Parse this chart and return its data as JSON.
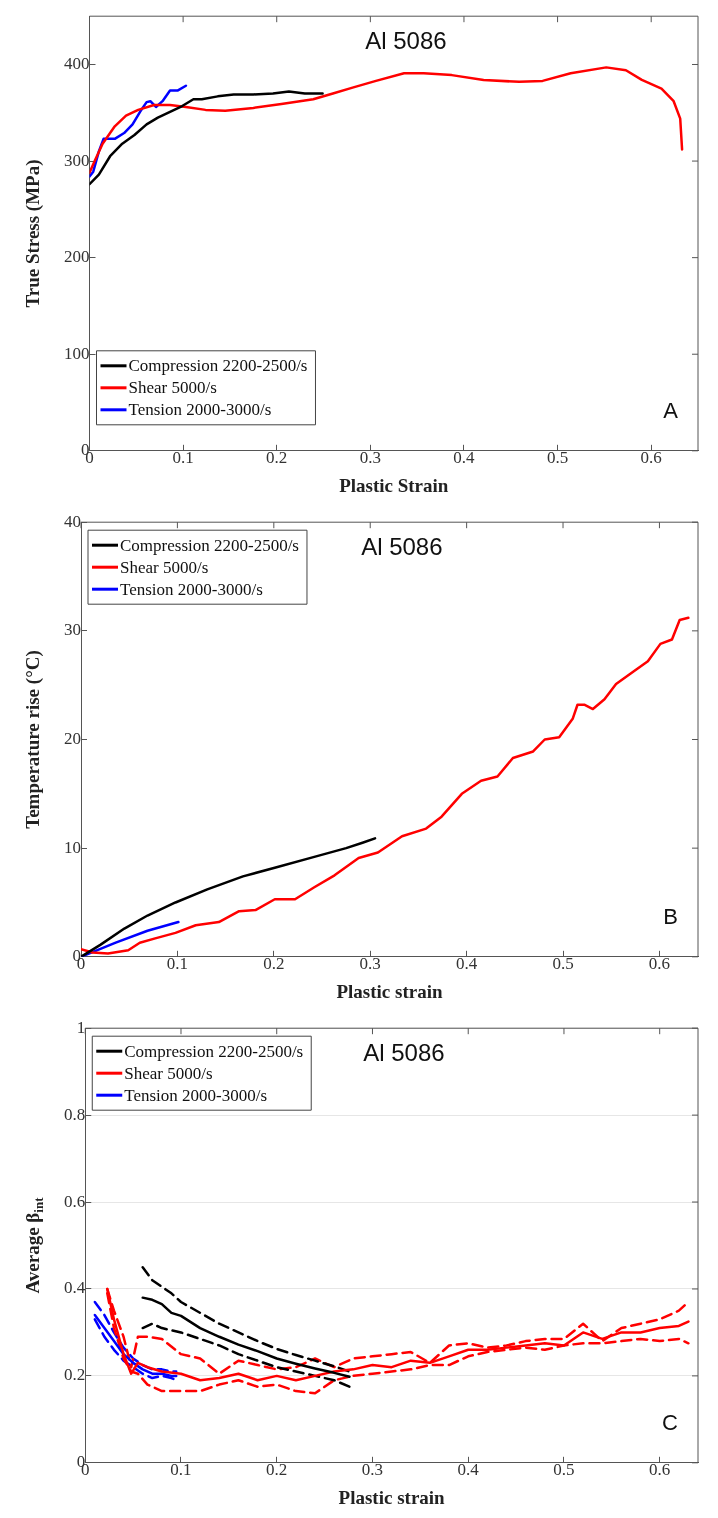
{
  "chart_data": [
    {
      "type": "line",
      "title": "Al 5086",
      "xlabel": "Plastic Strain",
      "ylabel": "True Stress (MPa)",
      "annotations": [
        "A"
      ],
      "xlim": [
        0,
        0.65
      ],
      "xticks": [
        0,
        0.1,
        0.2,
        0.3,
        0.4,
        0.5,
        0.6
      ],
      "ylim": [
        0,
        450
      ],
      "yticks": [
        0,
        100,
        200,
        300,
        400
      ],
      "legend": "bottom left",
      "grid": false,
      "marker": "none",
      "line_style": "solid",
      "series": [
        {
          "name": "Compression 2200-2500/s",
          "color": "#000000",
          "x": [
            0,
            0.01,
            0.022,
            0.035,
            0.048,
            0.061,
            0.073,
            0.086,
            0.099,
            0.111,
            0.12,
            0.137,
            0.154,
            0.175,
            0.196,
            0.213,
            0.23,
            0.249
          ],
          "values": [
            276,
            286,
            305,
            318,
            327,
            338,
            345,
            351,
            357,
            364,
            364,
            367,
            369,
            369,
            370,
            372,
            370,
            370
          ]
        },
        {
          "name": "Shear 5000/s",
          "color": "#ff0000",
          "x": [
            0,
            0.006,
            0.014,
            0.027,
            0.039,
            0.052,
            0.069,
            0.086,
            0.103,
            0.124,
            0.145,
            0.175,
            0.205,
            0.239,
            0.26,
            0.281,
            0.306,
            0.336,
            0.357,
            0.387,
            0.421,
            0.459,
            0.484,
            0.514,
            0.552,
            0.573,
            0.59,
            0.611,
            0.624,
            0.631,
            0.633
          ],
          "values": [
            288,
            301,
            318,
            336,
            347,
            353,
            358,
            358,
            356,
            353,
            352,
            355,
            359,
            364,
            370,
            376,
            383,
            391,
            391,
            389,
            384,
            382,
            383,
            391,
            397,
            394,
            384,
            375,
            362,
            344,
            312
          ]
        },
        {
          "name": "Tension 2000-3000/s",
          "color": "#0000ff",
          "x": [
            0,
            0.004,
            0.01,
            0.015,
            0.027,
            0.037,
            0.046,
            0.054,
            0.061,
            0.065,
            0.071,
            0.078,
            0.086,
            0.094,
            0.103
          ],
          "values": [
            284,
            289,
            310,
            323,
            323,
            329,
            338,
            351,
            361,
            362,
            356,
            362,
            373,
            373,
            378
          ]
        }
      ]
    },
    {
      "type": "line",
      "title": "Al 5086",
      "xlabel": "Plastic strain",
      "ylabel": "Temperature rise (°C)",
      "annotations": [
        "B"
      ],
      "xlim": [
        0,
        0.64
      ],
      "xticks": [
        0,
        0.1,
        0.2,
        0.3,
        0.4,
        0.5,
        0.6
      ],
      "ylim": [
        0,
        40
      ],
      "yticks": [
        0,
        10,
        20,
        30,
        40
      ],
      "legend": "top left",
      "grid": false,
      "marker": "none",
      "line_style": "solid",
      "series": [
        {
          "name": "Compression 2200-2500/s",
          "color": "#000000",
          "x": [
            0,
            0.02,
            0.045,
            0.069,
            0.098,
            0.131,
            0.168,
            0.201,
            0.242,
            0.275,
            0.292,
            0.305
          ],
          "values": [
            0,
            1.1,
            2.6,
            3.8,
            5.0,
            6.2,
            7.4,
            8.2,
            9.2,
            10.0,
            10.5,
            10.9
          ]
        },
        {
          "name": "Shear 5000/s",
          "color": "#ff0000",
          "x": [
            0,
            0.012,
            0.028,
            0.049,
            0.061,
            0.077,
            0.098,
            0.119,
            0.143,
            0.164,
            0.181,
            0.201,
            0.222,
            0.242,
            0.263,
            0.288,
            0.308,
            0.333,
            0.358,
            0.374,
            0.395,
            0.415,
            0.432,
            0.448,
            0.469,
            0.481,
            0.496,
            0.51,
            0.515,
            0.522,
            0.531,
            0.543,
            0.555,
            0.572,
            0.588,
            0.601,
            0.613,
            0.621,
            0.63
          ],
          "values": [
            0.7,
            0.4,
            0.3,
            0.6,
            1.3,
            1.7,
            2.2,
            2.9,
            3.2,
            4.2,
            4.3,
            5.3,
            5.3,
            6.4,
            7.5,
            9.1,
            9.6,
            11.1,
            11.8,
            12.9,
            15.0,
            16.2,
            16.6,
            18.3,
            18.9,
            20.0,
            20.2,
            21.9,
            23.2,
            23.2,
            22.8,
            23.7,
            25.1,
            26.2,
            27.2,
            28.8,
            29.2,
            31.0,
            31.2
          ]
        },
        {
          "name": "Tension 2000-3000/s",
          "color": "#0000ff",
          "x": [
            0,
            0.036,
            0.069,
            0.101
          ],
          "values": [
            0,
            1.3,
            2.4,
            3.2
          ]
        }
      ]
    },
    {
      "type": "line",
      "title": "Al 5086",
      "xlabel": "Plastic strain",
      "ylabel": "Average β$_{int}$",
      "annotations": [
        "C"
      ],
      "xlim": [
        0,
        0.64
      ],
      "xticks": [
        0,
        0.1,
        0.2,
        0.3,
        0.4,
        0.5,
        0.6
      ],
      "ylim": [
        0,
        1
      ],
      "yticks": [
        0,
        0.2,
        0.4,
        0.6,
        0.8,
        1
      ],
      "legend": "top left",
      "grid": "y",
      "marker": "none",
      "line_style": "solid",
      "series": [
        {
          "name": "Compression 2200-2500/s",
          "color": "#000000",
          "x": [
            0.06,
            0.07,
            0.08,
            0.09,
            0.1,
            0.12,
            0.14,
            0.16,
            0.18,
            0.2,
            0.22,
            0.24,
            0.26,
            0.276
          ],
          "values": [
            0.38,
            0.375,
            0.365,
            0.345,
            0.338,
            0.31,
            0.29,
            0.272,
            0.257,
            0.24,
            0.228,
            0.217,
            0.207,
            0.198
          ]
        },
        {
          "name": "Shear 5000/s",
          "color": "#ff0000",
          "x": [
            0.023,
            0.03,
            0.04,
            0.048,
            0.055,
            0.065,
            0.08,
            0.1,
            0.12,
            0.14,
            0.16,
            0.18,
            0.2,
            0.22,
            0.24,
            0.26,
            0.28,
            0.3,
            0.32,
            0.34,
            0.36,
            0.38,
            0.4,
            0.42,
            0.44,
            0.46,
            0.48,
            0.5,
            0.52,
            0.54,
            0.56,
            0.58,
            0.6,
            0.62,
            0.63
          ],
          "values": [
            0.4,
            0.33,
            0.25,
            0.205,
            0.23,
            0.22,
            0.21,
            0.205,
            0.19,
            0.195,
            0.205,
            0.19,
            0.2,
            0.19,
            0.2,
            0.21,
            0.215,
            0.225,
            0.22,
            0.235,
            0.23,
            0.245,
            0.26,
            0.26,
            0.265,
            0.27,
            0.275,
            0.27,
            0.3,
            0.285,
            0.3,
            0.3,
            0.31,
            0.315,
            0.325
          ]
        },
        {
          "name": "Tension 2000-3000/s",
          "color": "#0000ff",
          "x": [
            0.01,
            0.02,
            0.03,
            0.04,
            0.05,
            0.06,
            0.07,
            0.08,
            0.09,
            0.095
          ],
          "values": [
            0.34,
            0.31,
            0.28,
            0.25,
            0.23,
            0.215,
            0.205,
            0.205,
            0.2,
            0.2
          ]
        },
        {
          "color": "#000000",
          "line_style": "dashed",
          "x": [
            0.06,
            0.07,
            0.08,
            0.09,
            0.1,
            0.12,
            0.14,
            0.16,
            0.18,
            0.2,
            0.22,
            0.24,
            0.26,
            0.276
          ],
          "values": [
            0.45,
            0.42,
            0.405,
            0.39,
            0.37,
            0.345,
            0.32,
            0.3,
            0.28,
            0.262,
            0.248,
            0.235,
            0.222,
            0.21
          ]
        },
        {
          "color": "#000000",
          "line_style": "dashed",
          "x": [
            0.06,
            0.07,
            0.08,
            0.09,
            0.1,
            0.12,
            0.14,
            0.16,
            0.18,
            0.2,
            0.22,
            0.24,
            0.26,
            0.276
          ],
          "values": [
            0.31,
            0.32,
            0.31,
            0.305,
            0.3,
            0.285,
            0.27,
            0.25,
            0.235,
            0.22,
            0.21,
            0.2,
            0.19,
            0.175
          ]
        },
        {
          "color": "#ff0000",
          "line_style": "dashed",
          "x": [
            0.023,
            0.03,
            0.04,
            0.048,
            0.055,
            0.065,
            0.08,
            0.1,
            0.12,
            0.14,
            0.16,
            0.18,
            0.2,
            0.22,
            0.24,
            0.26,
            0.28,
            0.3,
            0.32,
            0.34,
            0.36,
            0.38,
            0.4,
            0.42,
            0.44,
            0.46,
            0.48,
            0.5,
            0.52,
            0.54,
            0.56,
            0.58,
            0.6,
            0.62,
            0.63
          ],
          "values": [
            0.4,
            0.35,
            0.29,
            0.22,
            0.29,
            0.29,
            0.285,
            0.25,
            0.24,
            0.205,
            0.235,
            0.225,
            0.215,
            0.22,
            0.24,
            0.22,
            0.24,
            0.245,
            0.25,
            0.255,
            0.23,
            0.27,
            0.275,
            0.265,
            0.27,
            0.28,
            0.285,
            0.285,
            0.32,
            0.28,
            0.31,
            0.32,
            0.33,
            0.35,
            0.37
          ]
        },
        {
          "color": "#ff0000",
          "line_style": "dashed",
          "x": [
            0.023,
            0.03,
            0.04,
            0.048,
            0.055,
            0.065,
            0.08,
            0.1,
            0.12,
            0.14,
            0.16,
            0.18,
            0.2,
            0.22,
            0.24,
            0.26,
            0.28,
            0.3,
            0.32,
            0.34,
            0.36,
            0.38,
            0.4,
            0.42,
            0.44,
            0.46,
            0.48,
            0.5,
            0.52,
            0.54,
            0.56,
            0.58,
            0.6,
            0.62,
            0.63
          ],
          "values": [
            0.39,
            0.31,
            0.24,
            0.21,
            0.205,
            0.18,
            0.165,
            0.165,
            0.165,
            0.18,
            0.19,
            0.175,
            0.18,
            0.165,
            0.16,
            0.19,
            0.2,
            0.205,
            0.21,
            0.215,
            0.225,
            0.225,
            0.245,
            0.255,
            0.26,
            0.265,
            0.26,
            0.27,
            0.275,
            0.275,
            0.28,
            0.285,
            0.28,
            0.285,
            0.275
          ]
        },
        {
          "color": "#0000ff",
          "line_style": "dashed",
          "x": [
            0.01,
            0.02,
            0.03,
            0.04,
            0.05,
            0.06,
            0.07,
            0.08,
            0.09,
            0.095
          ],
          "values": [
            0.37,
            0.34,
            0.3,
            0.265,
            0.24,
            0.225,
            0.215,
            0.215,
            0.21,
            0.21
          ]
        },
        {
          "color": "#0000ff",
          "line_style": "dashed",
          "x": [
            0.01,
            0.02,
            0.03,
            0.04,
            0.05,
            0.06,
            0.07,
            0.08,
            0.09,
            0.095
          ],
          "values": [
            0.33,
            0.29,
            0.26,
            0.235,
            0.22,
            0.205,
            0.195,
            0.2,
            0.195,
            0.19
          ]
        }
      ]
    }
  ]
}
